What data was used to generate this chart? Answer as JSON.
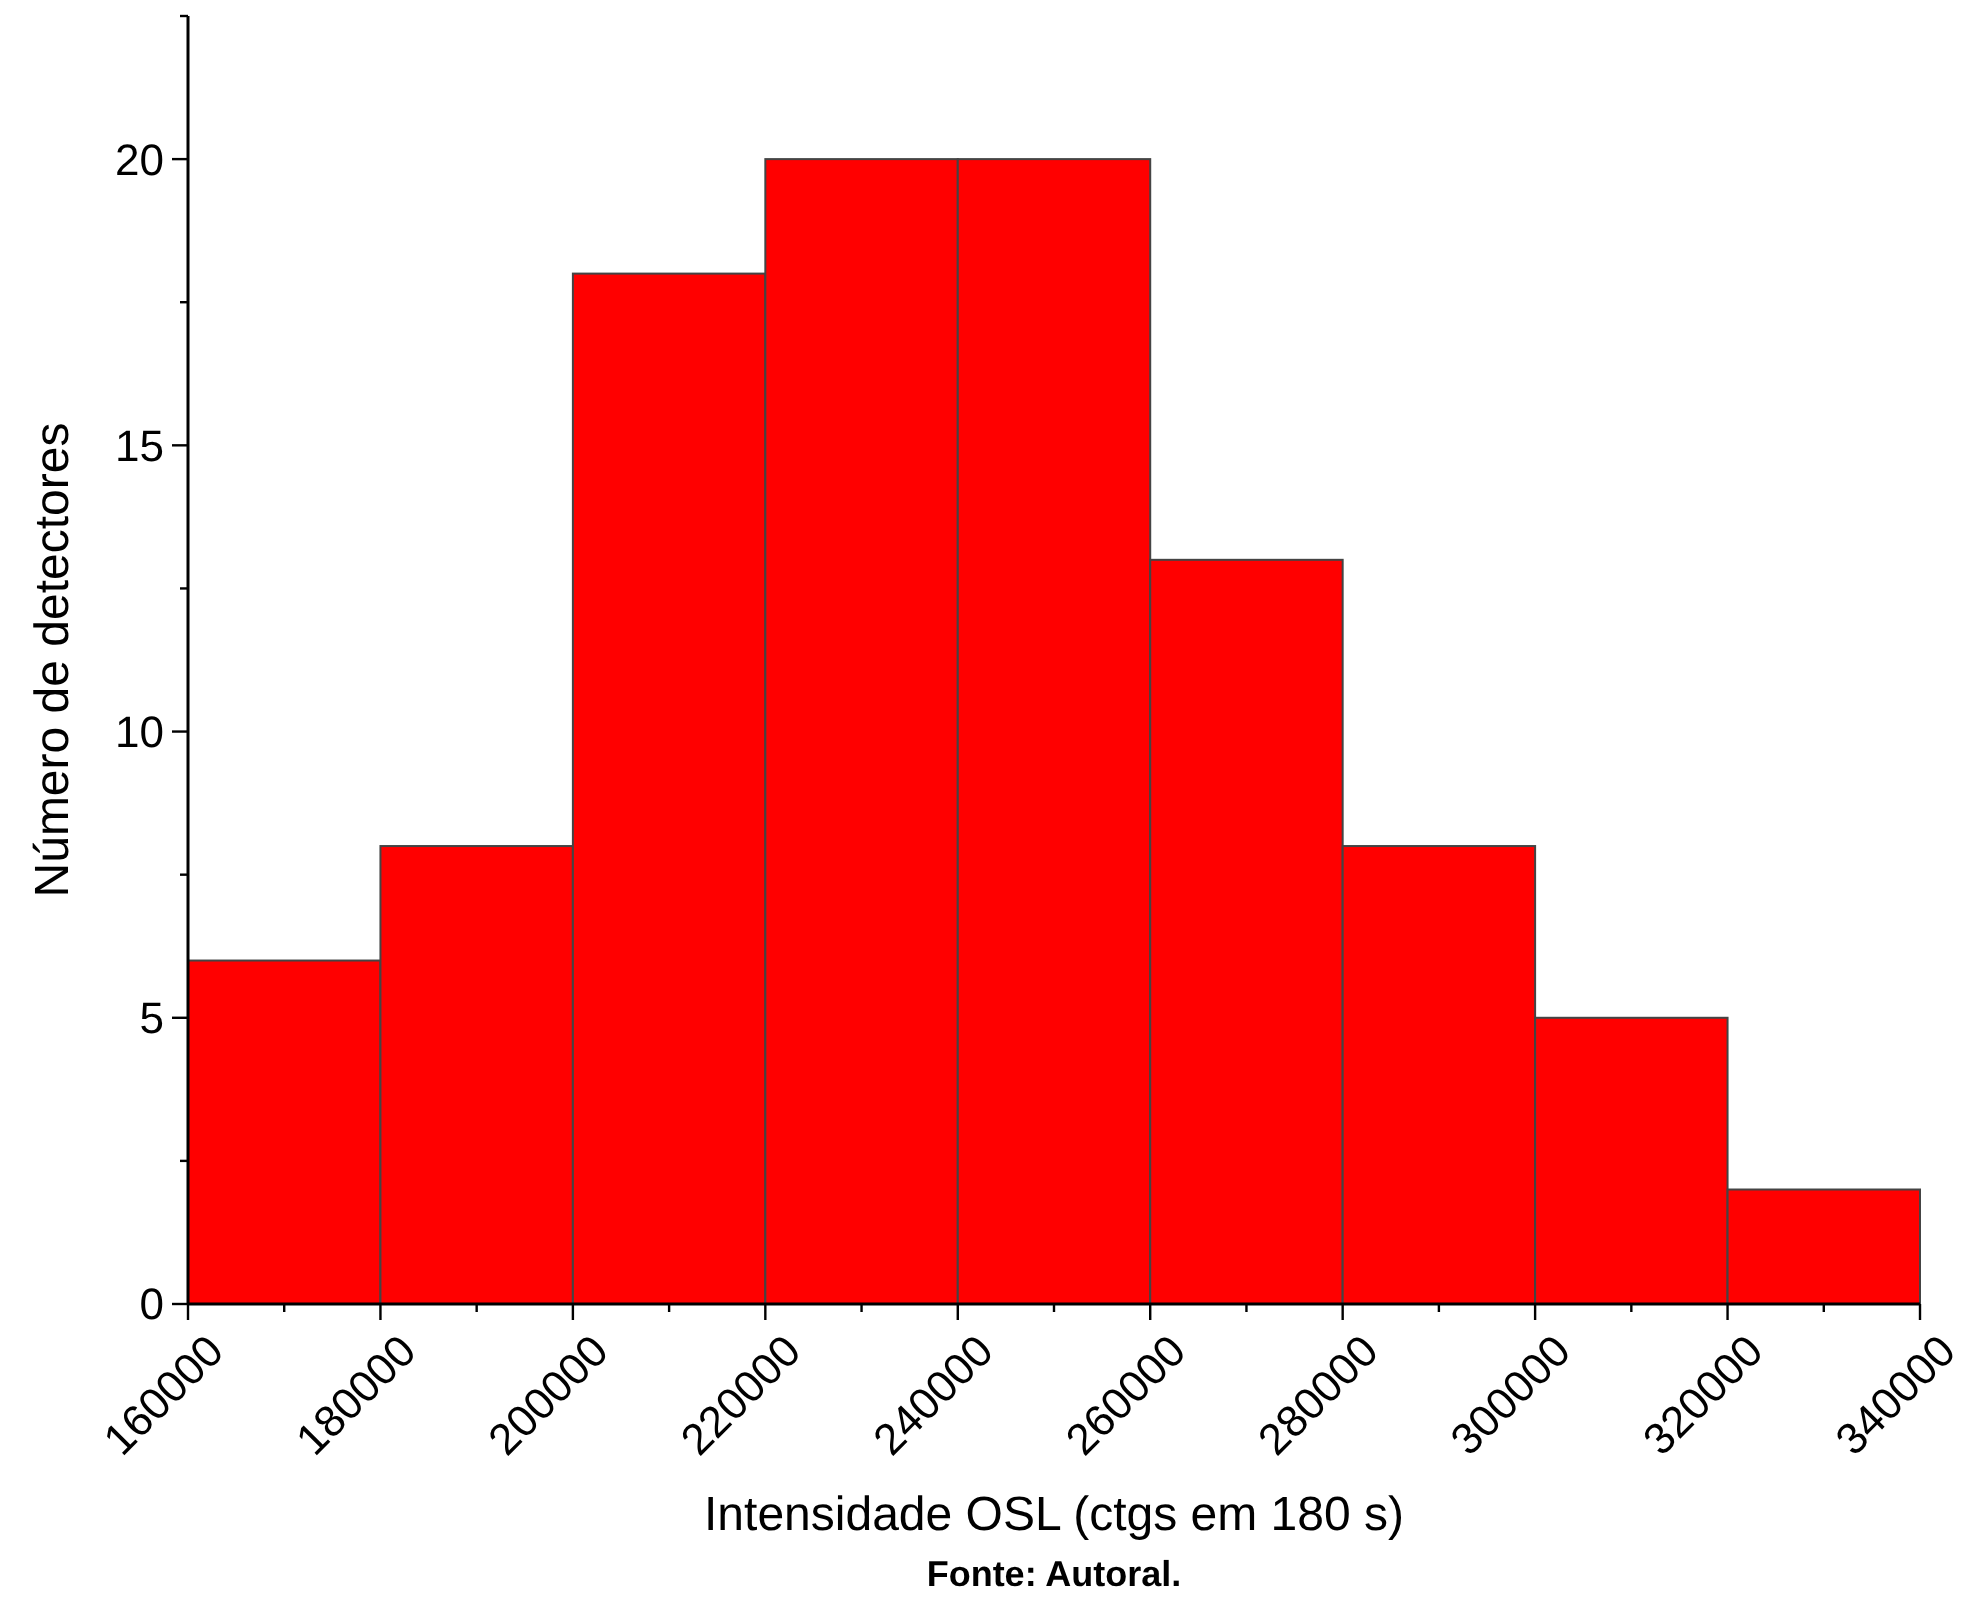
{
  "chart_data": {
    "type": "histogram",
    "xlabel": "Intensidade OSL (ctgs em 180 s)",
    "ylabel": "Número de detectores",
    "annotations": [
      "Fonte: Autoral."
    ],
    "bins": [
      160000,
      180000,
      200000,
      220000,
      240000,
      260000,
      280000,
      300000,
      320000,
      340000
    ],
    "values": [
      6,
      8,
      18,
      20,
      20,
      13,
      8,
      5,
      2
    ],
    "color": "#ff0000",
    "xlim": [
      160000,
      340000
    ],
    "xticks": [
      160000,
      {
        "value": 170000,
        "label": null
      },
      180000,
      {
        "value": 190000,
        "label": null
      },
      200000,
      {
        "value": 210000,
        "label": null
      },
      220000,
      {
        "value": 230000,
        "label": null
      },
      240000,
      {
        "value": 250000,
        "label": null
      },
      260000,
      {
        "value": 270000,
        "label": null
      },
      280000,
      {
        "value": 290000,
        "label": null
      },
      300000,
      {
        "value": 310000,
        "label": null
      },
      320000,
      {
        "value": 330000,
        "label": null
      },
      340000
    ],
    "ylim": [
      0,
      22.5
    ],
    "yticks": [
      0,
      {
        "value": 2.5,
        "label": null
      },
      5,
      {
        "value": 7.5,
        "label": null
      },
      10,
      {
        "value": 12.5,
        "label": null
      },
      15,
      {
        "value": 17.5,
        "label": null
      },
      20,
      {
        "value": 22.5,
        "label": null
      }
    ],
    "grid": false
  }
}
